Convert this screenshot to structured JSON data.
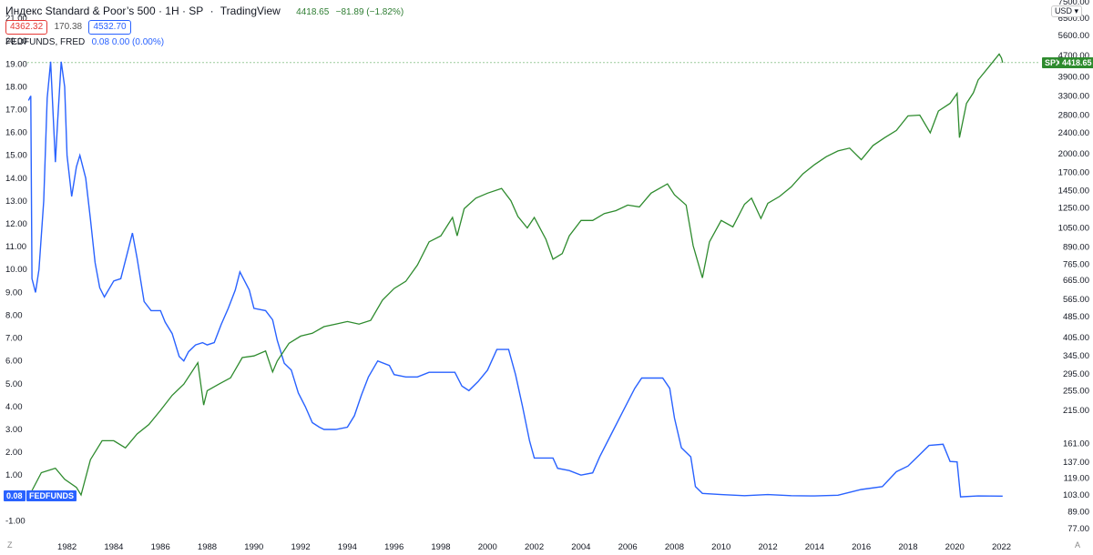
{
  "header": {
    "title": "Индекс Standard & Poor’s 500 · 1H · SP",
    "platform": "TradingView",
    "last_price": "4418.65",
    "change": "−81.89 (−1.82%)",
    "bid": "4362.32",
    "spread": "170.38",
    "ask": "4532.70",
    "indicator_name": "FEDFUNDS, FRED",
    "indicator_values": "0.08 0.00 (0.00%)"
  },
  "currency": "USD",
  "tags": {
    "spx_label": "SPX",
    "spx_value": "4418.65",
    "fed_value": "0.08",
    "fed_label": "FEDFUNDS"
  },
  "corner": {
    "left": "Z",
    "right": "A"
  },
  "colors": {
    "spx": "#2e8b2e",
    "fedfunds": "#2962ff",
    "price_tag": "#2e8b2e",
    "fed_tag": "#2962ff"
  },
  "chart_data": {
    "type": "line",
    "x_ticks": [
      "1982",
      "1984",
      "1986",
      "1988",
      "1990",
      "1992",
      "1994",
      "1996",
      "1998",
      "2000",
      "2002",
      "2004",
      "2006",
      "2008",
      "2010",
      "2012",
      "2014",
      "2016",
      "2018",
      "2020",
      "2022"
    ],
    "left_axis_ticks": [
      "21.00",
      "20.00",
      "19.00",
      "18.00",
      "17.00",
      "16.00",
      "15.00",
      "14.00",
      "13.00",
      "12.00",
      "11.00",
      "10.00",
      "9.00",
      "8.00",
      "7.00",
      "6.00",
      "5.00",
      "4.00",
      "3.00",
      "2.00",
      "1.00",
      "-1.00"
    ],
    "right_axis_ticks": [
      "7500.00",
      "6500.00",
      "5600.00",
      "4700.00",
      "3900.00",
      "3300.00",
      "2800.00",
      "2400.00",
      "2000.00",
      "1700.00",
      "1450.00",
      "1250.00",
      "1050.00",
      "890.00",
      "765.00",
      "665.00",
      "565.00",
      "485.00",
      "405.00",
      "345.00",
      "295.00",
      "255.00",
      "215.00",
      "161.00",
      "137.00",
      "119.00",
      "103.00",
      "89.00",
      "77.00"
    ],
    "left_scale": "linear",
    "right_scale": "log",
    "x_range": [
      1980.3,
      2023.5
    ],
    "left_ylim": [
      -1.5,
      21.4
    ],
    "grid": false,
    "series": [
      {
        "name": "SPX",
        "axis": "right",
        "points": [
          [
            1980.4,
            103
          ],
          [
            1980.9,
            125
          ],
          [
            1981.5,
            130
          ],
          [
            1981.9,
            118
          ],
          [
            1982.4,
            110
          ],
          [
            1982.6,
            103
          ],
          [
            1983.0,
            140
          ],
          [
            1983.5,
            165
          ],
          [
            1984.0,
            165
          ],
          [
            1984.5,
            155
          ],
          [
            1985.0,
            175
          ],
          [
            1985.5,
            190
          ],
          [
            1986.0,
            215
          ],
          [
            1986.5,
            245
          ],
          [
            1987.0,
            270
          ],
          [
            1987.6,
            325
          ],
          [
            1987.85,
            225
          ],
          [
            1988.0,
            255
          ],
          [
            1988.5,
            270
          ],
          [
            1989.0,
            285
          ],
          [
            1989.5,
            340
          ],
          [
            1990.0,
            345
          ],
          [
            1990.5,
            360
          ],
          [
            1990.8,
            300
          ],
          [
            1991.0,
            330
          ],
          [
            1991.5,
            385
          ],
          [
            1992.0,
            410
          ],
          [
            1992.5,
            420
          ],
          [
            1993.0,
            445
          ],
          [
            1993.5,
            455
          ],
          [
            1994.0,
            465
          ],
          [
            1994.5,
            455
          ],
          [
            1995.0,
            470
          ],
          [
            1995.5,
            560
          ],
          [
            1996.0,
            620
          ],
          [
            1996.5,
            660
          ],
          [
            1997.0,
            760
          ],
          [
            1997.5,
            930
          ],
          [
            1998.0,
            980
          ],
          [
            1998.5,
            1150
          ],
          [
            1998.7,
            980
          ],
          [
            1999.0,
            1240
          ],
          [
            1999.5,
            1360
          ],
          [
            2000.0,
            1420
          ],
          [
            2000.6,
            1480
          ],
          [
            2001.0,
            1330
          ],
          [
            2001.3,
            1160
          ],
          [
            2001.7,
            1050
          ],
          [
            2002.0,
            1150
          ],
          [
            2002.5,
            950
          ],
          [
            2002.8,
            800
          ],
          [
            2003.2,
            840
          ],
          [
            2003.5,
            980
          ],
          [
            2004.0,
            1120
          ],
          [
            2004.5,
            1120
          ],
          [
            2005.0,
            1190
          ],
          [
            2005.5,
            1220
          ],
          [
            2006.0,
            1280
          ],
          [
            2006.5,
            1260
          ],
          [
            2007.0,
            1420
          ],
          [
            2007.7,
            1540
          ],
          [
            2008.0,
            1400
          ],
          [
            2008.5,
            1280
          ],
          [
            2008.8,
            900
          ],
          [
            2009.2,
            680
          ],
          [
            2009.5,
            930
          ],
          [
            2010.0,
            1120
          ],
          [
            2010.5,
            1060
          ],
          [
            2011.0,
            1290
          ],
          [
            2011.3,
            1360
          ],
          [
            2011.7,
            1140
          ],
          [
            2012.0,
            1300
          ],
          [
            2012.5,
            1380
          ],
          [
            2013.0,
            1500
          ],
          [
            2013.5,
            1680
          ],
          [
            2014.0,
            1820
          ],
          [
            2014.5,
            1950
          ],
          [
            2015.0,
            2050
          ],
          [
            2015.5,
            2100
          ],
          [
            2016.0,
            1900
          ],
          [
            2016.5,
            2150
          ],
          [
            2017.0,
            2300
          ],
          [
            2017.5,
            2450
          ],
          [
            2018.0,
            2780
          ],
          [
            2018.5,
            2800
          ],
          [
            2018.95,
            2400
          ],
          [
            2019.3,
            2900
          ],
          [
            2019.8,
            3100
          ],
          [
            2020.1,
            3380
          ],
          [
            2020.2,
            2300
          ],
          [
            2020.5,
            3100
          ],
          [
            2020.8,
            3400
          ],
          [
            2021.0,
            3800
          ],
          [
            2021.5,
            4300
          ],
          [
            2021.9,
            4760
          ],
          [
            2022.0,
            4600
          ],
          [
            2022.05,
            4418.65
          ]
        ]
      },
      {
        "name": "FEDFUNDS",
        "axis": "left",
        "points": [
          [
            1980.35,
            17.4
          ],
          [
            1980.45,
            17.6
          ],
          [
            1980.5,
            9.6
          ],
          [
            1980.65,
            9.0
          ],
          [
            1980.8,
            10.0
          ],
          [
            1981.0,
            13.0
          ],
          [
            1981.15,
            17.5
          ],
          [
            1981.3,
            19.1
          ],
          [
            1981.5,
            14.7
          ],
          [
            1981.6,
            16.5
          ],
          [
            1981.75,
            19.1
          ],
          [
            1981.9,
            18.0
          ],
          [
            1982.0,
            15.0
          ],
          [
            1982.2,
            13.2
          ],
          [
            1982.4,
            14.5
          ],
          [
            1982.55,
            15.0
          ],
          [
            1982.8,
            14.0
          ],
          [
            1983.0,
            12.2
          ],
          [
            1983.2,
            10.3
          ],
          [
            1983.4,
            9.2
          ],
          [
            1983.6,
            8.8
          ],
          [
            1984.0,
            9.5
          ],
          [
            1984.3,
            9.6
          ],
          [
            1984.6,
            10.8
          ],
          [
            1984.8,
            11.6
          ],
          [
            1985.0,
            10.5
          ],
          [
            1985.3,
            8.6
          ],
          [
            1985.6,
            8.2
          ],
          [
            1986.0,
            8.2
          ],
          [
            1986.2,
            7.7
          ],
          [
            1986.5,
            7.2
          ],
          [
            1986.8,
            6.2
          ],
          [
            1987.0,
            6.0
          ],
          [
            1987.2,
            6.4
          ],
          [
            1987.5,
            6.7
          ],
          [
            1987.8,
            6.8
          ],
          [
            1988.0,
            6.7
          ],
          [
            1988.3,
            6.8
          ],
          [
            1988.6,
            7.6
          ],
          [
            1988.9,
            8.3
          ],
          [
            1989.2,
            9.1
          ],
          [
            1989.4,
            9.9
          ],
          [
            1989.8,
            9.1
          ],
          [
            1990.0,
            8.3
          ],
          [
            1990.5,
            8.2
          ],
          [
            1990.8,
            7.8
          ],
          [
            1991.0,
            6.9
          ],
          [
            1991.3,
            5.9
          ],
          [
            1991.6,
            5.6
          ],
          [
            1991.9,
            4.6
          ],
          [
            1992.2,
            4.0
          ],
          [
            1992.5,
            3.3
          ],
          [
            1992.8,
            3.1
          ],
          [
            1993.0,
            3.0
          ],
          [
            1993.5,
            3.0
          ],
          [
            1994.0,
            3.1
          ],
          [
            1994.3,
            3.6
          ],
          [
            1994.6,
            4.5
          ],
          [
            1994.9,
            5.3
          ],
          [
            1995.3,
            6.0
          ],
          [
            1995.8,
            5.8
          ],
          [
            1996.0,
            5.4
          ],
          [
            1996.5,
            5.3
          ],
          [
            1997.0,
            5.3
          ],
          [
            1997.5,
            5.5
          ],
          [
            1998.0,
            5.5
          ],
          [
            1998.6,
            5.5
          ],
          [
            1998.9,
            4.9
          ],
          [
            1999.2,
            4.7
          ],
          [
            1999.6,
            5.1
          ],
          [
            2000.0,
            5.6
          ],
          [
            2000.4,
            6.5
          ],
          [
            2000.9,
            6.5
          ],
          [
            2001.2,
            5.4
          ],
          [
            2001.5,
            4.0
          ],
          [
            2001.8,
            2.5
          ],
          [
            2002.0,
            1.75
          ],
          [
            2002.8,
            1.75
          ],
          [
            2003.0,
            1.3
          ],
          [
            2003.5,
            1.2
          ],
          [
            2004.0,
            1.0
          ],
          [
            2004.5,
            1.1
          ],
          [
            2004.8,
            1.8
          ],
          [
            2005.3,
            2.8
          ],
          [
            2005.8,
            3.8
          ],
          [
            2006.3,
            4.8
          ],
          [
            2006.6,
            5.25
          ],
          [
            2007.5,
            5.25
          ],
          [
            2007.8,
            4.8
          ],
          [
            2008.0,
            3.5
          ],
          [
            2008.3,
            2.2
          ],
          [
            2008.7,
            1.8
          ],
          [
            2008.9,
            0.5
          ],
          [
            2009.2,
            0.2
          ],
          [
            2010.0,
            0.15
          ],
          [
            2011.0,
            0.1
          ],
          [
            2012.0,
            0.15
          ],
          [
            2013.0,
            0.1
          ],
          [
            2014.0,
            0.09
          ],
          [
            2015.0,
            0.12
          ],
          [
            2016.0,
            0.37
          ],
          [
            2016.9,
            0.5
          ],
          [
            2017.5,
            1.15
          ],
          [
            2018.0,
            1.4
          ],
          [
            2018.5,
            1.9
          ],
          [
            2018.9,
            2.3
          ],
          [
            2019.5,
            2.35
          ],
          [
            2019.8,
            1.6
          ],
          [
            2020.1,
            1.58
          ],
          [
            2020.25,
            0.05
          ],
          [
            2021.0,
            0.09
          ],
          [
            2022.05,
            0.08
          ]
        ]
      }
    ]
  }
}
